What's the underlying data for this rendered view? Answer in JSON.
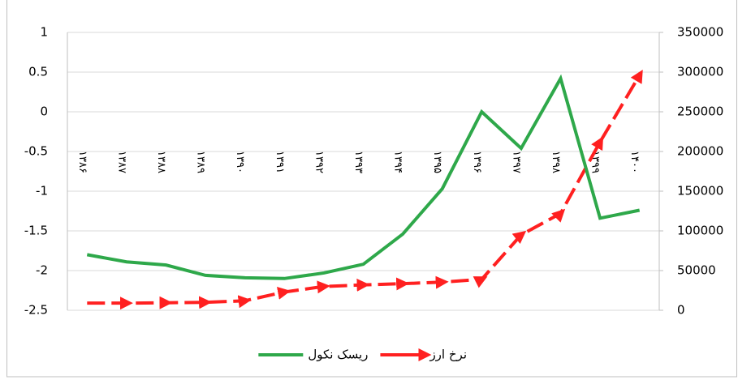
{
  "chart_data": {
    "type": "line",
    "categories": [
      "۱۳۸۶",
      "۱۳۸۷",
      "۱۳۸۸",
      "۱۳۸۹",
      "۱۳۹۰",
      "۱۳۹۱",
      "۱۳۹۲",
      "۱۳۹۳",
      "۱۳۹۴",
      "۱۳۹۵",
      "۱۳۹۶",
      "۱۳۹۷",
      "۱۳۹۸",
      "۱۳۹۹",
      "۱۴۰۰"
    ],
    "series": [
      {
        "name": "نرخ ارز",
        "color": "#ff2020",
        "axis": "y2",
        "values": [
          9000,
          9000,
          9500,
          10000,
          12000,
          23000,
          30000,
          32000,
          33500,
          35500,
          39000,
          95000,
          122000,
          212000,
          296000
        ]
      },
      {
        "name": "ریسک نکول",
        "color": "#2ea84a",
        "values": [
          -1.8,
          -1.89,
          -1.93,
          -2.06,
          -2.09,
          -2.1,
          -2.03,
          -1.92,
          -1.54,
          -0.97,
          0,
          -0.46,
          0.42,
          -1.34,
          -1.24
        ]
      }
    ],
    "ylim": [
      -2.5,
      1
    ],
    "yticks": [
      -2.5,
      -2,
      -1.5,
      -1,
      -0.5,
      0,
      0.5,
      1
    ],
    "y2lim": [
      0,
      350000
    ],
    "y2ticks": [
      0,
      50000,
      100000,
      150000,
      200000,
      250000,
      300000,
      350000
    ],
    "grid": true,
    "legend": "bottom"
  }
}
